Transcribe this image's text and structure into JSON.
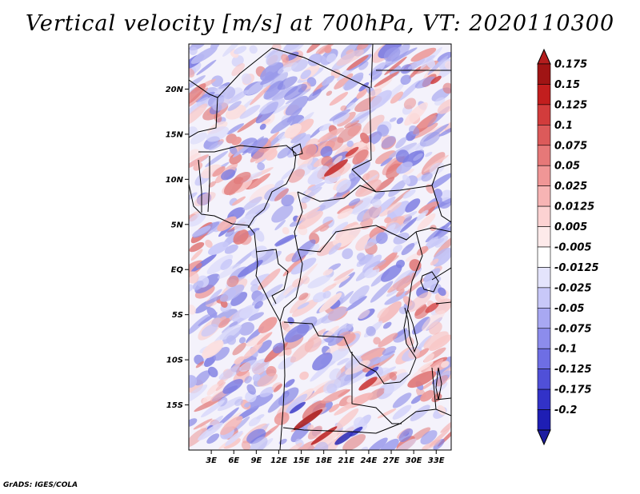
{
  "title": "Vertical velocity [m/s] at 700hPa, VT: 2020110300",
  "credit": "GrADS: IGES/COLA",
  "map": {
    "lon_range": [
      0,
      35
    ],
    "lat_range": [
      -20,
      25
    ],
    "variable": "vertical velocity",
    "units": "m/s",
    "level": "700hPa",
    "valid_time": "2020110300",
    "lat_ticks": [
      {
        "value": 20,
        "label": "20N"
      },
      {
        "value": 15,
        "label": "15N"
      },
      {
        "value": 10,
        "label": "10N"
      },
      {
        "value": 5,
        "label": "5N"
      },
      {
        "value": 0,
        "label": "EQ"
      },
      {
        "value": -5,
        "label": "5S"
      },
      {
        "value": -10,
        "label": "10S"
      },
      {
        "value": -15,
        "label": "15S"
      }
    ],
    "lon_ticks": [
      {
        "value": 3,
        "label": "3E"
      },
      {
        "value": 6,
        "label": "6E"
      },
      {
        "value": 9,
        "label": "9E"
      },
      {
        "value": 12,
        "label": "12E"
      },
      {
        "value": 15,
        "label": "15E"
      },
      {
        "value": 18,
        "label": "18E"
      },
      {
        "value": 21,
        "label": "21E"
      },
      {
        "value": 24,
        "label": "24E"
      },
      {
        "value": 27,
        "label": "27E"
      },
      {
        "value": 30,
        "label": "30E"
      },
      {
        "value": 33,
        "label": "33E"
      }
    ]
  },
  "colorbar": {
    "levels": [
      {
        "label": "0.175",
        "color": "#a01414"
      },
      {
        "label": "0.15",
        "color": "#c21e1e"
      },
      {
        "label": "0.125",
        "color": "#d23c3c"
      },
      {
        "label": "0.1",
        "color": "#dc5a5a"
      },
      {
        "label": "0.075",
        "color": "#e67878"
      },
      {
        "label": "0.05",
        "color": "#f09696"
      },
      {
        "label": "0.025",
        "color": "#f7b4b4"
      },
      {
        "label": "0.0125",
        "color": "#fcd2d2"
      },
      {
        "label": "0.005",
        "color": "#fdeaea"
      },
      {
        "label": "-0.005",
        "color": "#ffffff"
      },
      {
        "label": "-0.0125",
        "color": "#e4e4fc"
      },
      {
        "label": "-0.025",
        "color": "#c8c8f8"
      },
      {
        "label": "-0.05",
        "color": "#a8a8f2"
      },
      {
        "label": "-0.075",
        "color": "#8c8cec"
      },
      {
        "label": "-0.1",
        "color": "#6e6ee4"
      },
      {
        "label": "-0.125",
        "color": "#5050d8"
      },
      {
        "label": "-0.175",
        "color": "#3232c8"
      },
      {
        "label": "-0.2",
        "color": "#1e1eb4"
      }
    ],
    "top_color": "#b41e1e",
    "bottom_color": "#1e1ea0"
  }
}
